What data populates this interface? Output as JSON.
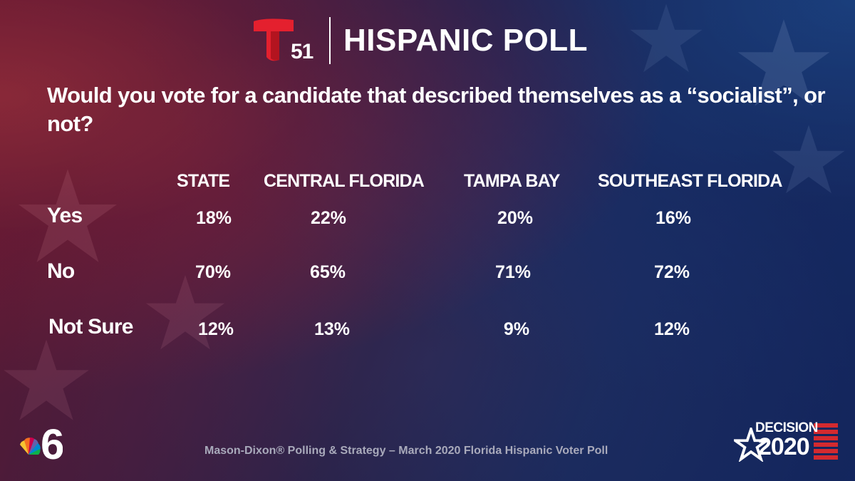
{
  "header": {
    "station_number": "51",
    "title": "HISPANIC POLL"
  },
  "question": "Would you vote for a candidate that described themselves as a “socialist”, or not?",
  "columns": [
    "STATE",
    "CENTRAL FLORIDA",
    "TAMPA BAY",
    "SOUTHEAST FLORIDA"
  ],
  "rows": [
    {
      "label": "Yes",
      "values": [
        "18%",
        "22%",
        "20%",
        "16%"
      ]
    },
    {
      "label": "No",
      "values": [
        "70%",
        "65%",
        "71%",
        "72%"
      ]
    },
    {
      "label": "Not Sure",
      "values": [
        "12%",
        "13%",
        "9%",
        "12%"
      ]
    }
  ],
  "footer": {
    "source": "Mason-Dixon® Polling & Strategy – March 2020 Florida Hispanic Voter Poll"
  },
  "badges": {
    "nbc_channel": "6",
    "decision_word": "DECISION",
    "decision_year": "2020"
  },
  "colors": {
    "telemundo_red": "#e4202e",
    "footer_gray": "#a9aabb",
    "flag_red": "#d42a2f"
  },
  "icons": [
    "telemundo-t-logo",
    "nbc-peacock-logo",
    "decision-2020-star-logo"
  ]
}
